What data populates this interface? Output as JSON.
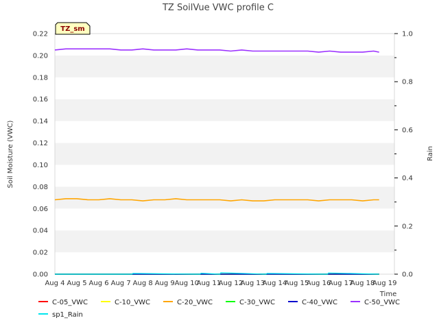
{
  "chart_data": {
    "type": "line",
    "title": "TZ SoilVue VWC profile C",
    "badge": "TZ_sm",
    "xlabel": "Time",
    "ylabel": "Soil Moisture (VWC)",
    "ylabel_right": "Rain",
    "ylim": [
      0,
      0.22
    ],
    "ylim_right": [
      0,
      1.0
    ],
    "yticks": [
      "0.00",
      "0.02",
      "0.04",
      "0.06",
      "0.08",
      "0.10",
      "0.12",
      "0.14",
      "0.16",
      "0.18",
      "0.20",
      "0.22"
    ],
    "yticks_right": [
      "0.0",
      "0.2",
      "0.4",
      "0.6",
      "0.8",
      "1.0"
    ],
    "xticks": [
      "Aug 4",
      "Aug 5",
      "Aug 6",
      "Aug 7",
      "Aug 8",
      "Aug 9",
      "Aug 10",
      "Aug 11",
      "Aug 12",
      "Aug 13",
      "Aug 14",
      "Aug 15",
      "Aug 16",
      "Aug 17",
      "Aug 18",
      "Aug 19"
    ],
    "grid": "alternating horizontal bands",
    "legend": "bottom",
    "x_start_day": 4.0,
    "x_end_day": 18.75,
    "series": [
      {
        "name": "C-05_VWC",
        "color": "#ff0000",
        "axis": "left",
        "x": [
          4.0,
          18.75
        ],
        "values": [
          0.0,
          0.0
        ]
      },
      {
        "name": "C-10_VWC",
        "color": "#ffff00",
        "axis": "left",
        "x": [
          4.0,
          18.75
        ],
        "values": [
          0.0,
          0.0
        ]
      },
      {
        "name": "C-20_VWC",
        "color": "#ffa500",
        "axis": "left",
        "x": [
          4.0,
          4.5,
          5.0,
          5.5,
          6.0,
          6.5,
          7.0,
          7.5,
          8.0,
          8.5,
          9.0,
          9.5,
          10.0,
          10.5,
          11.0,
          11.5,
          12.0,
          12.5,
          13.0,
          13.5,
          14.0,
          14.5,
          15.0,
          15.5,
          16.0,
          16.5,
          17.0,
          17.5,
          18.0,
          18.5,
          18.75
        ],
        "values": [
          0.068,
          0.069,
          0.069,
          0.068,
          0.068,
          0.069,
          0.068,
          0.068,
          0.067,
          0.068,
          0.068,
          0.069,
          0.068,
          0.068,
          0.068,
          0.068,
          0.067,
          0.068,
          0.067,
          0.067,
          0.068,
          0.068,
          0.068,
          0.068,
          0.067,
          0.068,
          0.068,
          0.068,
          0.067,
          0.068,
          0.068
        ]
      },
      {
        "name": "C-30_VWC",
        "color": "#00ff00",
        "axis": "left",
        "x": [
          4.0,
          18.75
        ],
        "values": [
          0.0,
          0.0
        ]
      },
      {
        "name": "C-40_VWC",
        "color": "#0000cd",
        "axis": "left",
        "x": [
          4.0,
          18.75
        ],
        "values": [
          0.0,
          0.0
        ]
      },
      {
        "name": "C-50_VWC",
        "color": "#9b30ff",
        "axis": "left",
        "x": [
          4.0,
          4.5,
          5.0,
          5.5,
          6.0,
          6.5,
          7.0,
          7.5,
          8.0,
          8.5,
          9.0,
          9.5,
          10.0,
          10.5,
          11.0,
          11.5,
          12.0,
          12.5,
          13.0,
          13.5,
          14.0,
          14.5,
          15.0,
          15.5,
          16.0,
          16.5,
          17.0,
          17.5,
          18.0,
          18.5,
          18.75
        ],
        "values": [
          0.205,
          0.206,
          0.206,
          0.206,
          0.206,
          0.206,
          0.205,
          0.205,
          0.206,
          0.205,
          0.205,
          0.205,
          0.206,
          0.205,
          0.205,
          0.205,
          0.204,
          0.205,
          0.204,
          0.204,
          0.204,
          0.204,
          0.204,
          0.204,
          0.203,
          0.204,
          0.203,
          0.203,
          0.203,
          0.204,
          0.203
        ]
      },
      {
        "name": "sp1_Rain",
        "color": "#00e5ee",
        "axis": "right",
        "x": [
          4.0,
          7.5,
          7.55,
          10.6,
          10.65,
          11.5,
          11.55,
          13.6,
          13.65,
          16.4,
          16.45,
          18.75
        ],
        "values": [
          0.0,
          0.0,
          0.003,
          0.0,
          0.004,
          0.0,
          0.006,
          0.0,
          0.003,
          0.0,
          0.005,
          0.0
        ]
      }
    ]
  }
}
